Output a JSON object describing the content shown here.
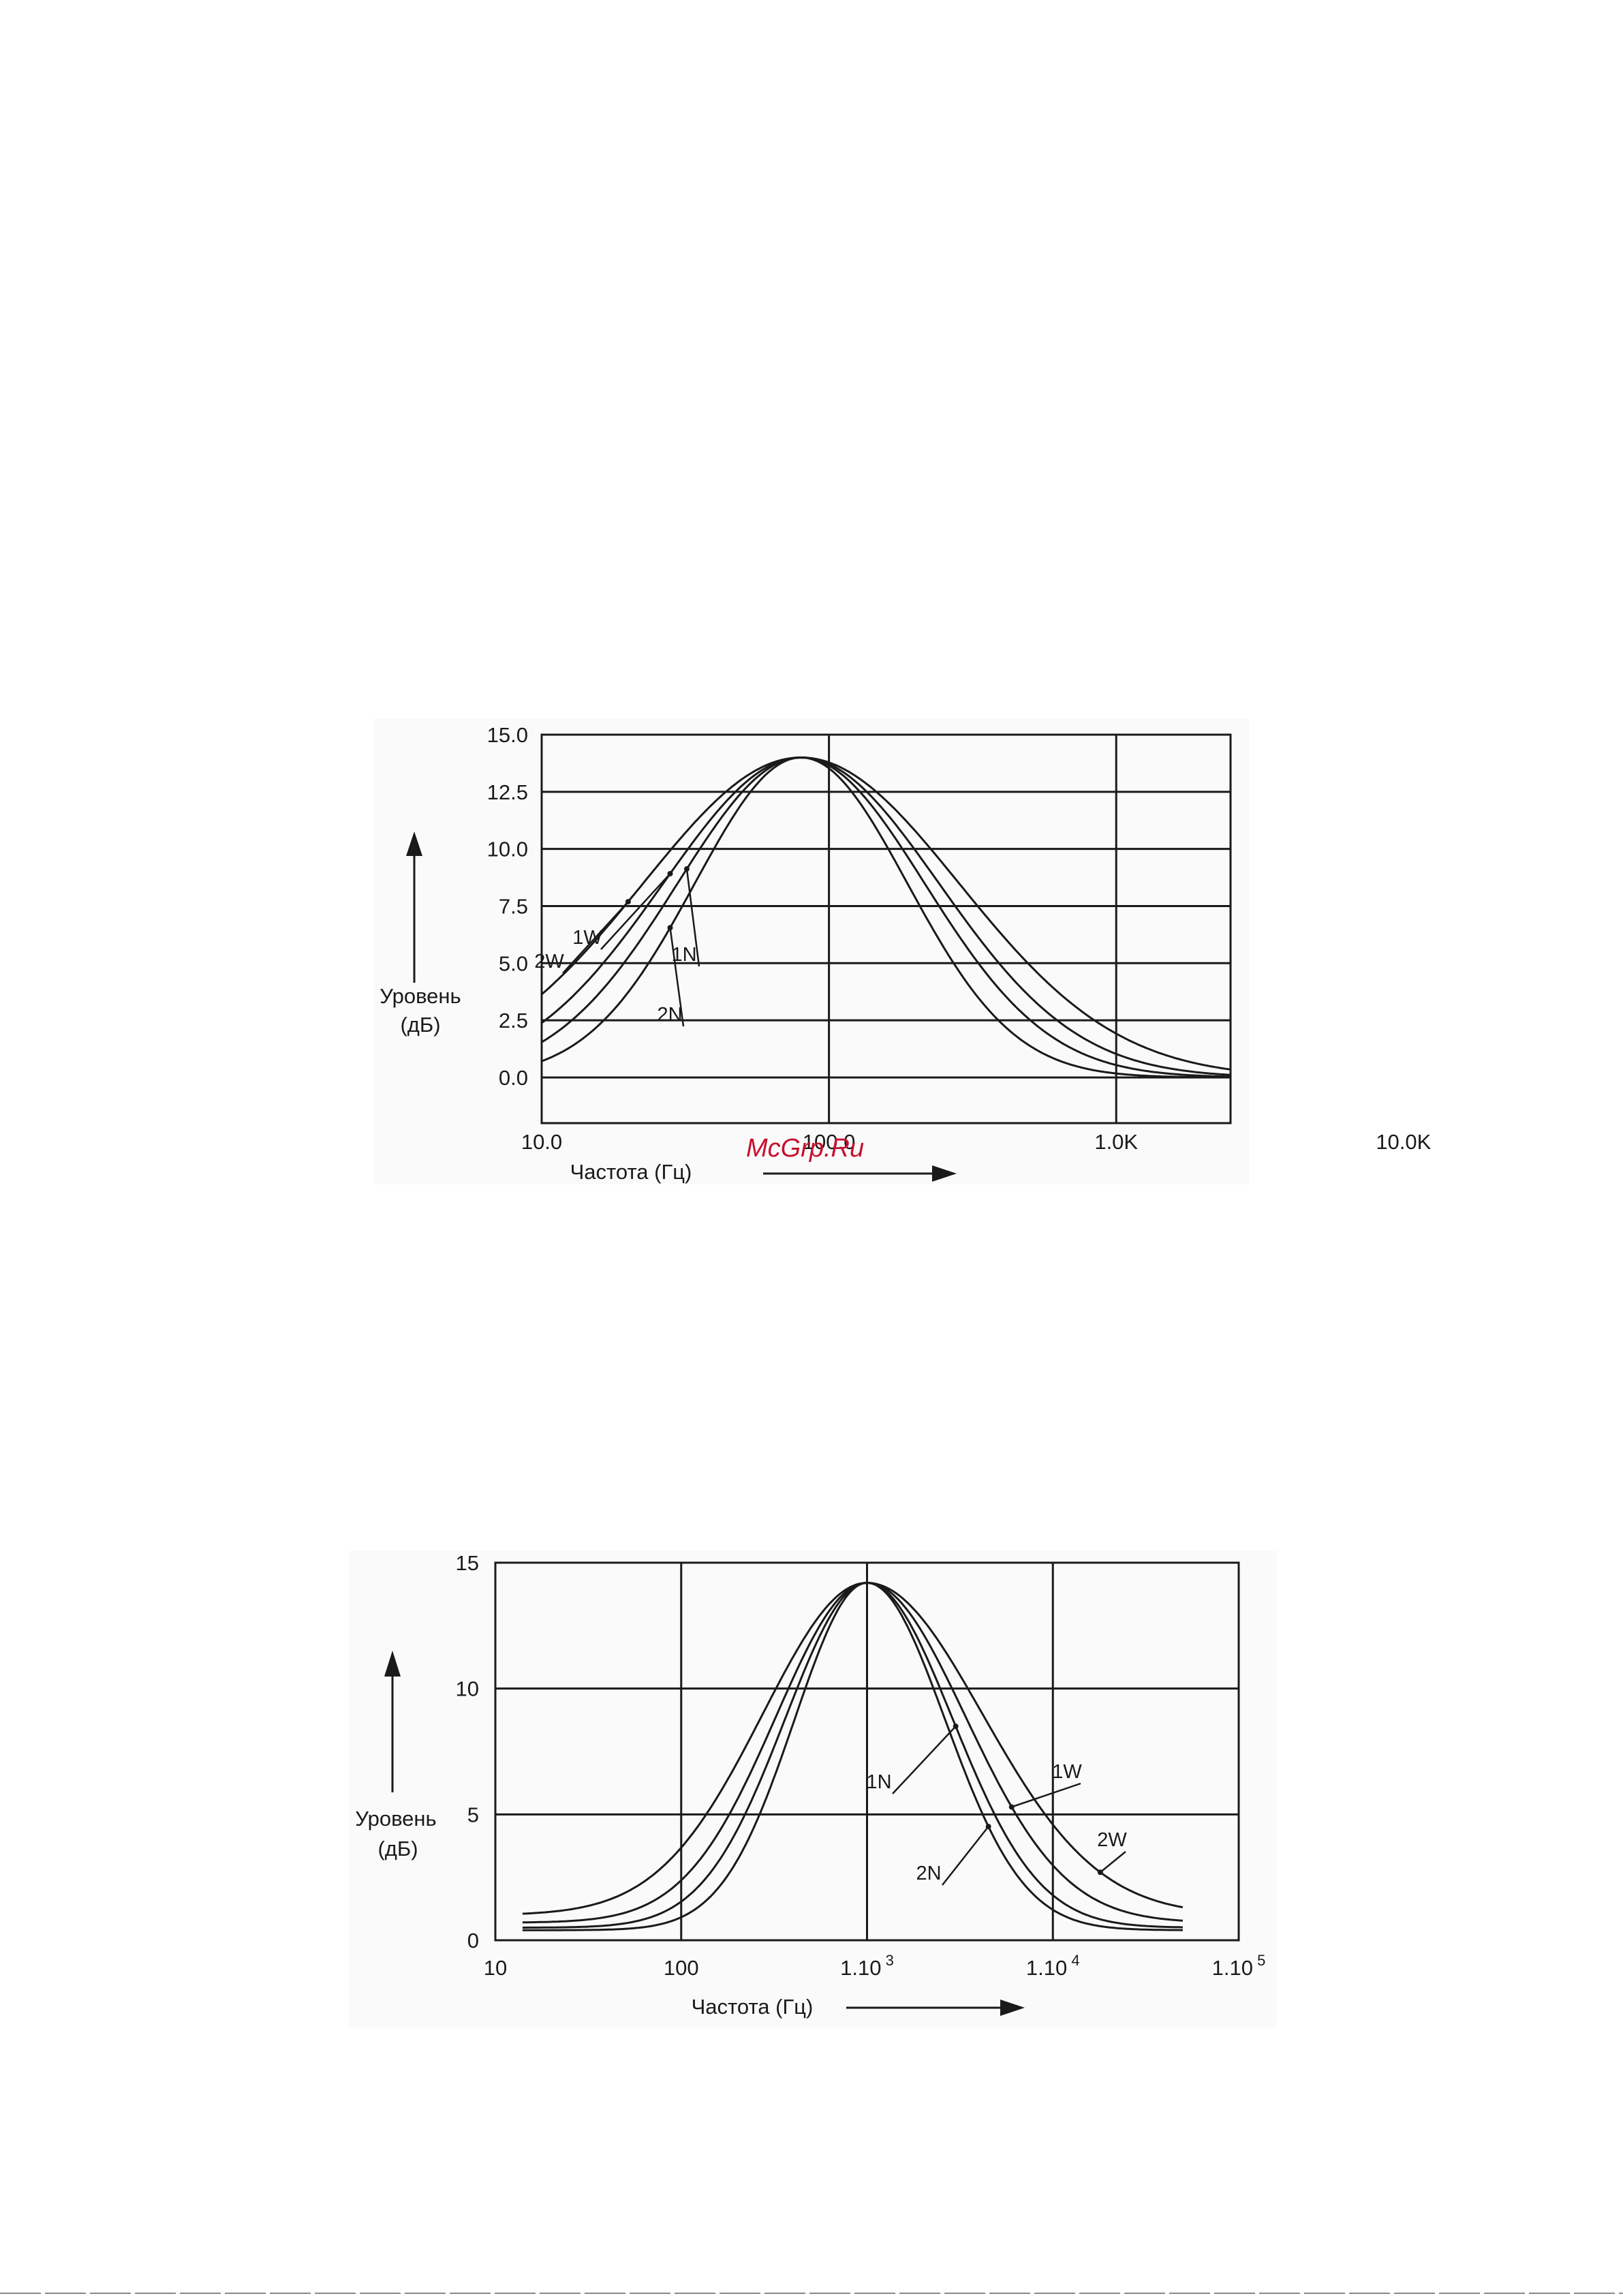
{
  "chart_data": [
    {
      "type": "line",
      "x_scale": "log",
      "xlim": [
        10,
        2500
      ],
      "ylim": [
        -2,
        15
      ],
      "x_ticks": [
        {
          "value": 10,
          "label": "10.0"
        },
        {
          "value": 100,
          "label": "100.0"
        },
        {
          "value": 1000,
          "label": "1.0K"
        },
        {
          "value": 10000,
          "label": "10.0K"
        }
      ],
      "y_ticks": [
        {
          "value": 15,
          "label": "15.0"
        },
        {
          "value": 12.5,
          "label": "12.5"
        },
        {
          "value": 10,
          "label": "10.0"
        },
        {
          "value": 7.5,
          "label": "7.5"
        },
        {
          "value": 5,
          "label": "5.0"
        },
        {
          "value": 2.5,
          "label": "2.5"
        },
        {
          "value": 0,
          "label": "0.0"
        }
      ],
      "xlabel": "Частота (Гц)",
      "ylabel_line1": "Уровень",
      "ylabel_line2": "(дБ)",
      "grid": true,
      "series": [
        {
          "name": "2W",
          "peak_x": 80,
          "peak_y": 14,
          "rise_width": 0.55,
          "fall_width": 0.55,
          "floor": 0
        },
        {
          "name": "1W",
          "peak_x": 80,
          "peak_y": 14,
          "rise_width": 0.48,
          "fall_width": 0.48,
          "floor": 0
        },
        {
          "name": "1N",
          "peak_x": 80,
          "peak_y": 14,
          "rise_width": 0.43,
          "fall_width": 0.43,
          "floor": 0
        },
        {
          "name": "2N",
          "peak_x": 80,
          "peak_y": 14,
          "rise_width": 0.37,
          "fall_width": 0.37,
          "floor": 0
        }
      ],
      "annotations": [
        {
          "text": "2W",
          "series": "2W",
          "at_x": 20
        },
        {
          "text": "1W",
          "series": "1W",
          "at_x": 28
        },
        {
          "text": "1N",
          "series": "1N",
          "at_x": 32
        },
        {
          "text": "2N",
          "series": "2N",
          "at_x": 28
        }
      ]
    },
    {
      "type": "line",
      "x_scale": "log",
      "xlim": [
        10,
        100000
      ],
      "ylim": [
        0,
        15
      ],
      "x_ticks": [
        {
          "value": 10,
          "label": "10"
        },
        {
          "value": 100,
          "label": "100"
        },
        {
          "value": 1000,
          "label": "1.10",
          "exponent": "3"
        },
        {
          "value": 10000,
          "label": "1.10",
          "exponent": "4"
        },
        {
          "value": 100000,
          "label": "1.10",
          "exponent": "5"
        }
      ],
      "y_ticks": [
        {
          "value": 15,
          "label": "15"
        },
        {
          "value": 10,
          "label": "10"
        },
        {
          "value": 5,
          "label": "5"
        },
        {
          "value": 0,
          "label": "0"
        }
      ],
      "xlabel": "Частота (Гц)",
      "ylabel_line1": "Уровень",
      "ylabel_line2": "(дБ)",
      "grid": true,
      "series": [
        {
          "name": "2W",
          "peak_x": 1000,
          "peak_y": 14.2,
          "rise_width": 0.56,
          "fall_width": 0.62,
          "floor": 1.0
        },
        {
          "name": "1W",
          "peak_x": 1000,
          "peak_y": 14.2,
          "rise_width": 0.49,
          "fall_width": 0.53,
          "floor": 0.7
        },
        {
          "name": "1N",
          "peak_x": 1000,
          "peak_y": 14.2,
          "rise_width": 0.44,
          "fall_width": 0.46,
          "floor": 0.5
        },
        {
          "name": "2N",
          "peak_x": 1000,
          "peak_y": 14.2,
          "rise_width": 0.39,
          "fall_width": 0.42,
          "floor": 0.4
        }
      ],
      "annotations": [
        {
          "text": "1N",
          "series": "1N",
          "at_x": 3000
        },
        {
          "text": "1W",
          "series": "1W",
          "at_x": 6000
        },
        {
          "text": "2N",
          "series": "2N",
          "at_x": 4500
        },
        {
          "text": "2W",
          "series": "2W",
          "at_x": 18000
        }
      ]
    }
  ],
  "watermark": "McGrp.Ru",
  "colors": {
    "ink": "#1a1a1a",
    "watermark": "#c8102e",
    "background": "#ffffff"
  }
}
